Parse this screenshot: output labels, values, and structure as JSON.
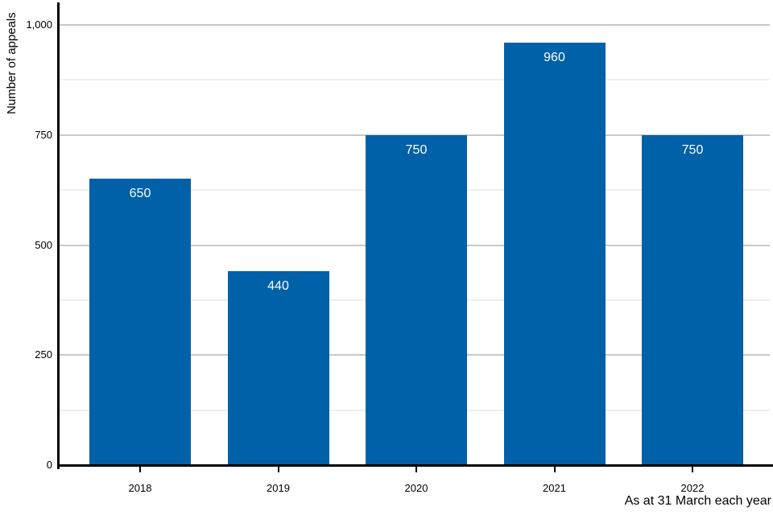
{
  "chart_data": {
    "type": "bar",
    "title": "",
    "ylabel": "Number of appeals",
    "xlabel": "As at 31 March each year",
    "categories": [
      "2018",
      "2019",
      "2020",
      "2021",
      "2022"
    ],
    "values": [
      650,
      440,
      750,
      960,
      750
    ],
    "value_labels": [
      "650",
      "440",
      "750",
      "960",
      "750"
    ],
    "ylim": [
      0,
      1050
    ],
    "yticks": [
      0,
      250,
      500,
      750,
      1000
    ],
    "ytick_labels": [
      "0",
      "250",
      "500",
      "750",
      "1,000"
    ],
    "minor_gridlines": [
      125,
      375,
      625,
      875
    ],
    "grid": true,
    "legend": "none",
    "bar_color": "#0060a8",
    "value_label_color": "#ffffff",
    "major_grid_color": "#c8c8c8",
    "minor_grid_color": "#efefef",
    "axis_color": "#000000"
  }
}
